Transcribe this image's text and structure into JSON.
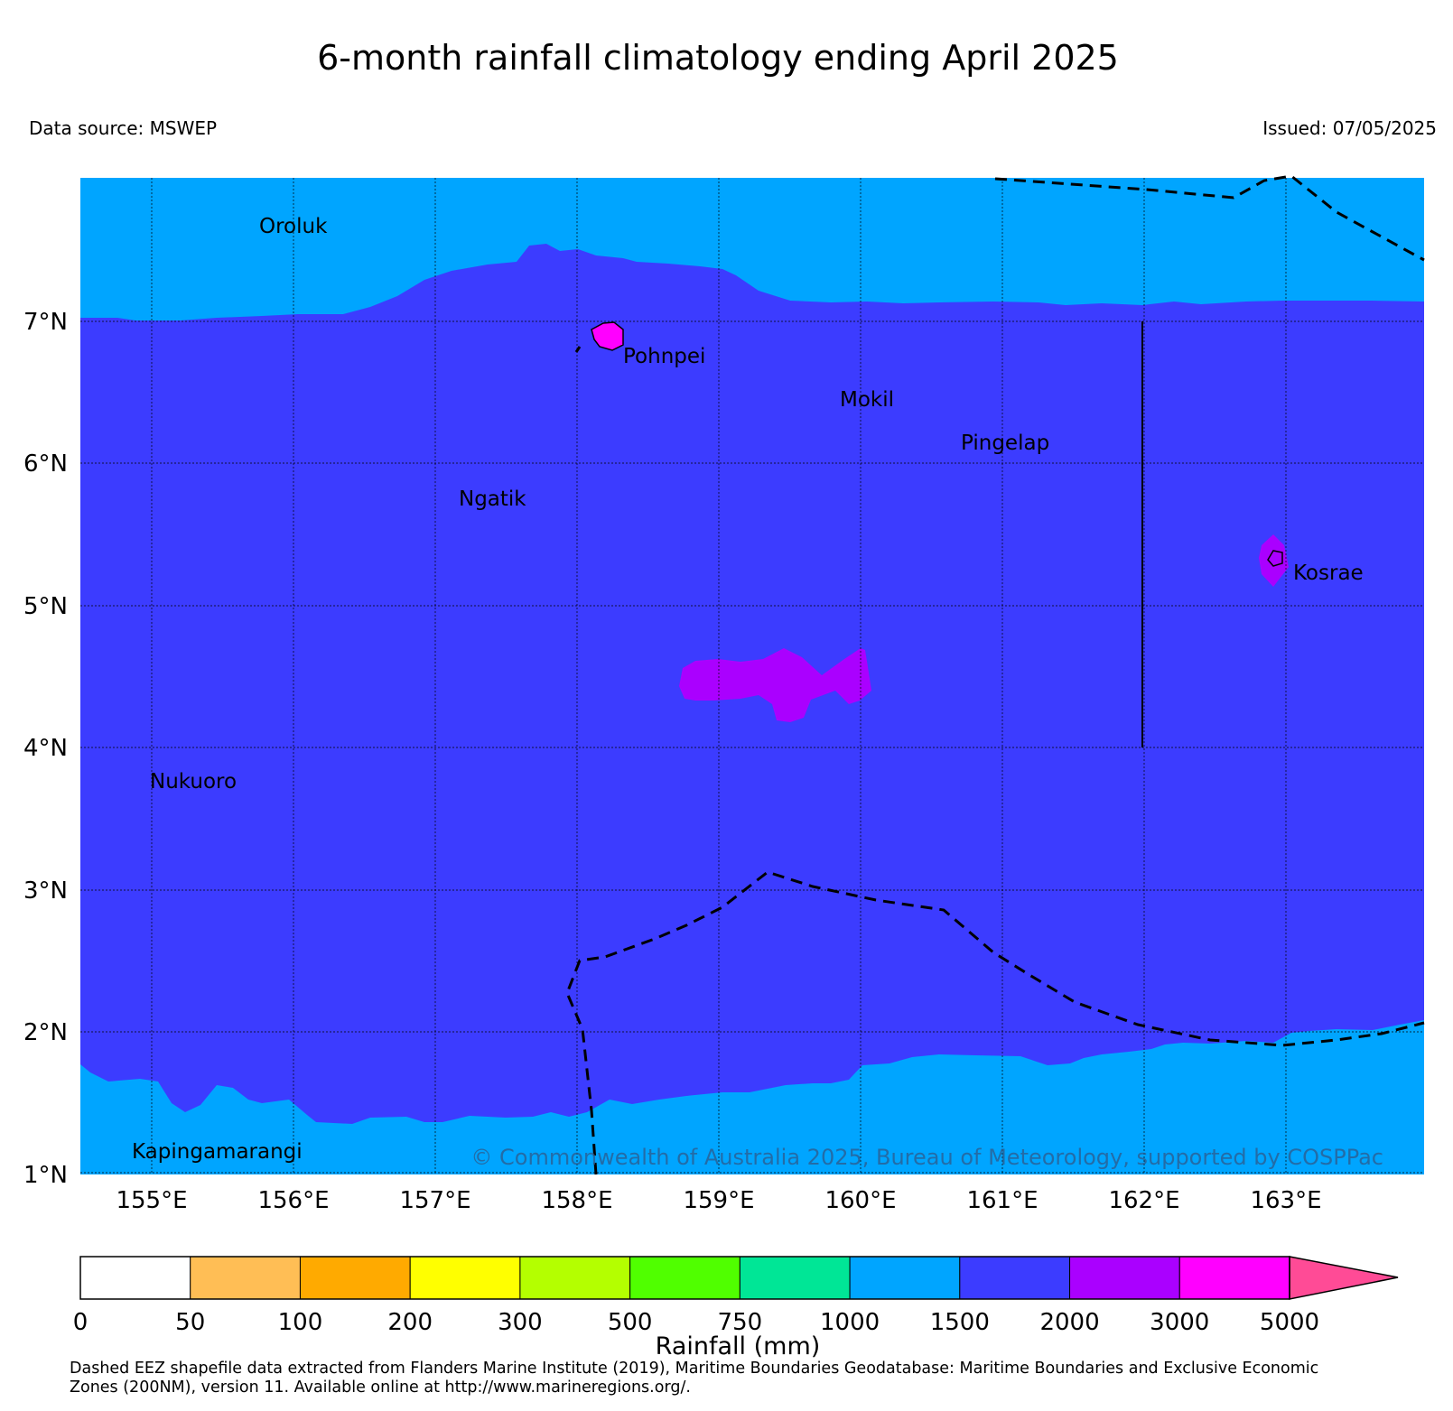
{
  "header": {
    "title": "6-month rainfall climatology ending April 2025",
    "data_source": "Data source: MSWEP",
    "issued": "Issued: 07/05/2025"
  },
  "map": {
    "lat_labels": [
      "7°N",
      "6°N",
      "5°N",
      "4°N",
      "3°N",
      "2°N",
      "1°N"
    ],
    "lon_labels": [
      "155°E",
      "156°E",
      "157°E",
      "158°E",
      "159°E",
      "160°E",
      "161°E",
      "162°E",
      "163°E"
    ],
    "places": {
      "oroluk": "Oroluk",
      "pohnpei": "Pohnpei",
      "mokil": "Mokil",
      "pingelap": "Pingelap",
      "ngatik": "Ngatik",
      "kosrae": "Kosrae",
      "nukuoro": "Nukuoro",
      "kapingamarangi": "Kapingamarangi"
    },
    "copyright": "© Commonwealth of Australia 2025, Bureau of Meteorology, supported by COSPPac",
    "colors": {
      "class_1000_1500": "#00a5ff",
      "class_1500_2000": "#3c3cff",
      "class_2000_3000": "#aa00ff"
    }
  },
  "colorbar": {
    "label": "Rainfall (mm)",
    "ticks": [
      "0",
      "50",
      "100",
      "200",
      "300",
      "500",
      "750",
      "1000",
      "1500",
      "2000",
      "3000",
      "5000"
    ],
    "colors": [
      "#ffffff",
      "#ffbe55",
      "#ffaa00",
      "#ffff00",
      "#b4ff00",
      "#50ff00",
      "#00e696",
      "#00a5ff",
      "#3c3cff",
      "#aa00ff",
      "#ff00ff"
    ],
    "extend_color": "#ff4b96"
  },
  "footnote": {
    "line1": "Dashed EEZ shapefile data extracted from Flanders Marine Institute (2019), Maritime Boundaries Geodatabase: Maritime Boundaries and Exclusive Economic",
    "line2": "Zones (200NM), version 11. Available online at http://www.marineregions.org/."
  }
}
